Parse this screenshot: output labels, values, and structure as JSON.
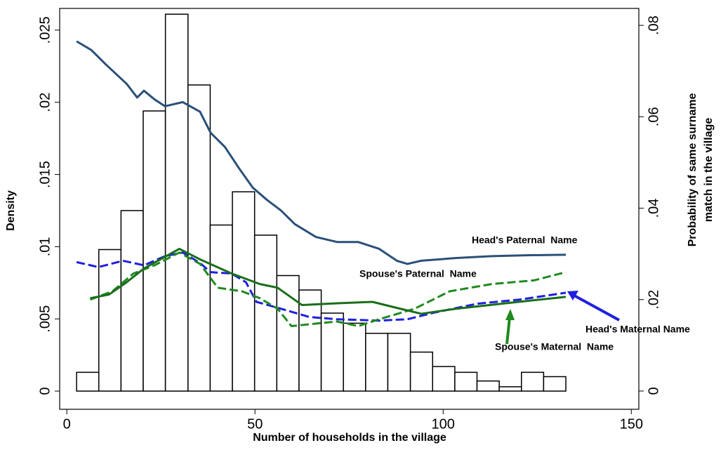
{
  "chart_data": {
    "type": "histogram",
    "xlabel": "Number of households in the village",
    "ylabel": "Density",
    "y2label": [
      "Probability of same surname",
      "match in the village"
    ],
    "bins": [
      2.6,
      8.5,
      14.4,
      20.3,
      26.2,
      32.2,
      38.1,
      44.0,
      49.9,
      55.8,
      61.7,
      67.6,
      73.5,
      79.4,
      85.3,
      91.3,
      97.2,
      103.1,
      109.0,
      114.9,
      120.8,
      126.7,
      132.6
    ],
    "values": [
      0.0013,
      0.0098,
      0.0125,
      0.0194,
      0.0261,
      0.0212,
      0.0115,
      0.0138,
      0.0108,
      0.008,
      0.007,
      0.0054,
      0.0047,
      0.004,
      0.004,
      0.0027,
      0.0017,
      0.0013,
      0.0007,
      0.0003,
      0.0013,
      0.001
    ],
    "color": "#ffffff",
    "edgecolor": "#000000",
    "xlim": [
      -1.9,
      152
    ],
    "xticks": [
      0,
      50,
      100,
      150
    ],
    "ylim": [
      -0.00126,
      0.0265
    ],
    "yticks": [
      0,
      {
        "value": 0.005,
        "label": ".005"
      },
      {
        "value": 0.01,
        "label": ".01"
      },
      {
        "value": 0.015,
        "label": ".015"
      },
      {
        "value": 0.02,
        "label": ".02"
      },
      {
        "value": 0.025,
        "label": ".025"
      }
    ],
    "y2lim": [
      -0.004,
      0.0837
    ],
    "y2ticks": [
      0,
      {
        "value": 0.02,
        "label": ".02"
      },
      {
        "value": 0.04,
        "label": ".04"
      },
      {
        "value": 0.06,
        "label": ".06"
      },
      {
        "value": 0.08,
        "label": ".08"
      }
    ],
    "series": [
      {
        "name": "Head's Paternal  Name",
        "color": "#2a5078",
        "dash": false,
        "axis": "y2",
        "x": [
          2.6,
          6.5,
          10.3,
          15.9,
          18.7,
          20.5,
          23.3,
          26.1,
          30.8,
          35.4,
          38.2,
          42.0,
          45.7,
          49.4,
          53.2,
          56.9,
          60.6,
          66.2,
          71.8,
          77.4,
          83.0,
          87.7,
          90.5,
          94.2,
          103.5,
          112.9,
          122.2,
          132.6
        ],
        "values": [
          0.0765,
          0.0746,
          0.0715,
          0.0672,
          0.0642,
          0.0657,
          0.0638,
          0.0623,
          0.0632,
          0.0611,
          0.0565,
          0.0534,
          0.0488,
          0.0445,
          0.0418,
          0.0395,
          0.0365,
          0.0337,
          0.0326,
          0.0326,
          0.0311,
          0.0285,
          0.0278,
          0.0285,
          0.0291,
          0.0295,
          0.0297,
          0.0298
        ]
      },
      {
        "name": "Head's Maternal Name",
        "color": "#1f1fe0",
        "dash": true,
        "axis": "y2",
        "x": [
          2.6,
          8.4,
          14.9,
          20.5,
          26.1,
          30.8,
          35.4,
          38.2,
          43.8,
          47.6,
          50.4,
          56.9,
          64.4,
          71.8,
          83.0,
          90.5,
          97.9,
          109.1,
          120.3,
          132.6
        ],
        "values": [
          0.0282,
          0.0271,
          0.0285,
          0.0275,
          0.0295,
          0.0303,
          0.028,
          0.026,
          0.0257,
          0.0238,
          0.0195,
          0.018,
          0.0162,
          0.0157,
          0.0154,
          0.0157,
          0.0172,
          0.0191,
          0.02,
          0.0215
        ]
      },
      {
        "name": "Spouse's Paternal  Name",
        "color": "#1f8a1f",
        "dash": true,
        "axis": "y2",
        "x": [
          6.2,
          12.1,
          17.7,
          23.3,
          29.9,
          35.4,
          40.1,
          46.6,
          51.3,
          56.0,
          59.7,
          64.4,
          71.8,
          77.4,
          83.0,
          92.4,
          101.7,
          112.9,
          124.1,
          132.6
        ],
        "values": [
          0.02,
          0.0218,
          0.0257,
          0.0275,
          0.0303,
          0.0278,
          0.0226,
          0.0218,
          0.0203,
          0.018,
          0.0142,
          0.0146,
          0.0152,
          0.0142,
          0.0157,
          0.018,
          0.0218,
          0.0234,
          0.0242,
          0.026
        ]
      },
      {
        "name": "Spouse's Maternal  Name",
        "color": "#1a6e1a",
        "dash": false,
        "axis": "y2",
        "x": [
          6.2,
          11.2,
          15.9,
          20.5,
          29.9,
          35.4,
          43.8,
          51.3,
          56.0,
          62.5,
          71.8,
          81.2,
          88.6,
          94.2,
          103.5,
          116.6,
          132.6
        ],
        "values": [
          0.0203,
          0.0211,
          0.0238,
          0.0268,
          0.0311,
          0.0288,
          0.0257,
          0.0234,
          0.0226,
          0.0188,
          0.0192,
          0.0195,
          0.018,
          0.0169,
          0.018,
          0.0192,
          0.0206
        ]
      }
    ]
  }
}
